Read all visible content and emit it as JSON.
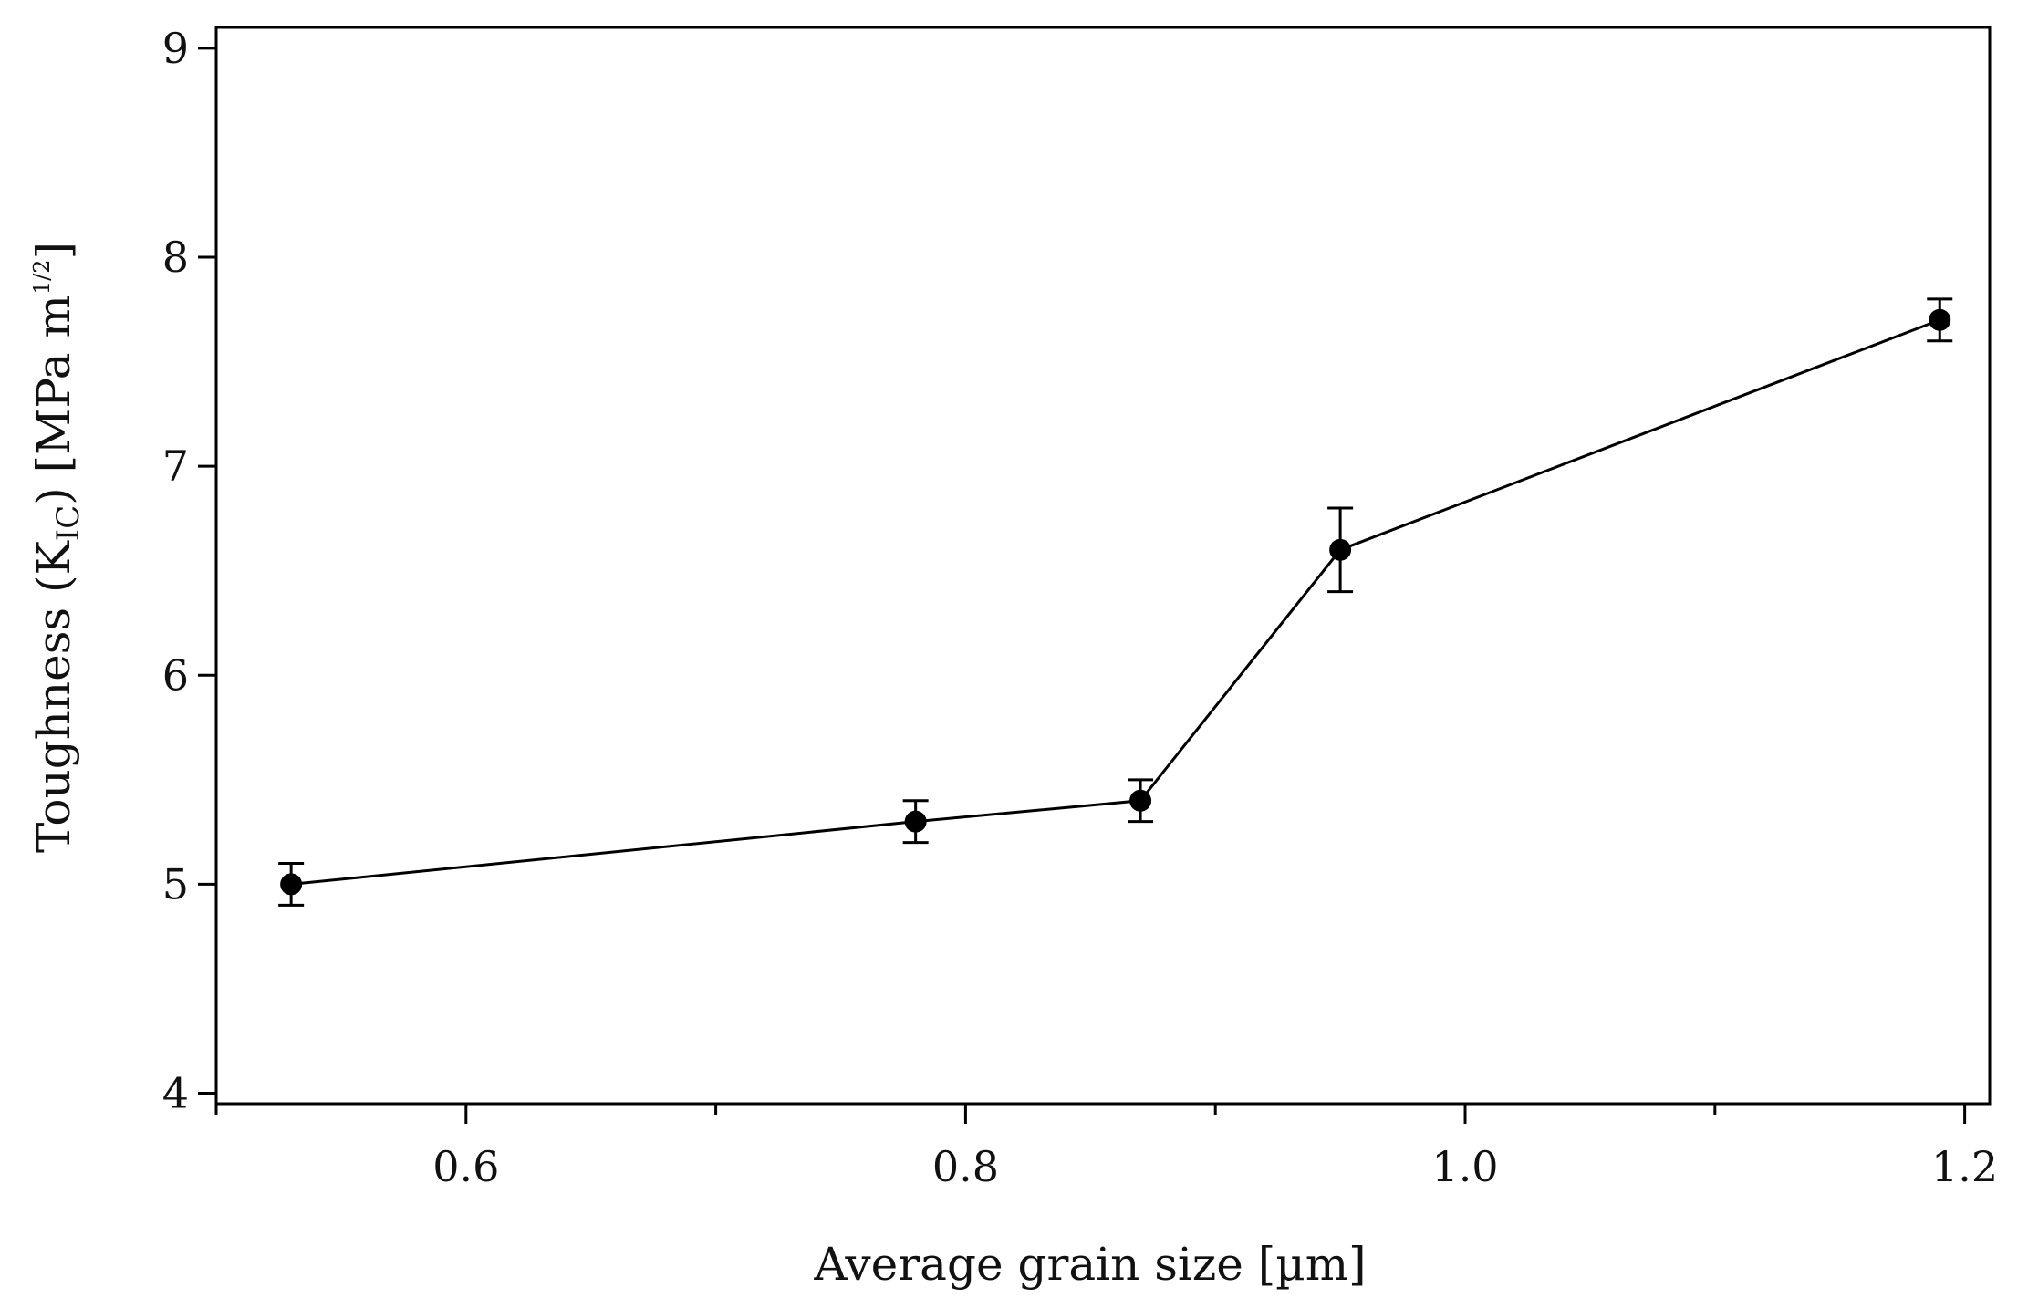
{
  "chart_data": {
    "type": "line",
    "title": "",
    "xlabel": "Average grain size  [µm]",
    "ylabel": {
      "main": "Toughness (K",
      "sub": "IC",
      "mid": ")  [MPa  m",
      "sup": "1/2",
      "end": "]"
    },
    "xlim": [
      0.5,
      1.21
    ],
    "ylim": [
      3.95,
      9.1
    ],
    "x_ticks_major": [
      0.6,
      0.8,
      1.0,
      1.2
    ],
    "x_tick_labels": [
      "0.6",
      "0.8",
      "1.0",
      "1.2"
    ],
    "x_ticks_minor": [
      0.5,
      0.7,
      0.9,
      1.1
    ],
    "y_ticks": [
      4,
      5,
      6,
      7,
      8,
      9
    ],
    "y_tick_labels": [
      "4",
      "5",
      "6",
      "7",
      "8",
      "9"
    ],
    "grid": false,
    "series": [
      {
        "name": "Toughness",
        "x": [
          0.53,
          0.78,
          0.87,
          0.95,
          1.19
        ],
        "y": [
          5.0,
          5.3,
          5.4,
          6.6,
          7.7
        ],
        "error": [
          0.1,
          0.1,
          0.1,
          0.2,
          0.1
        ],
        "marker": "circle",
        "color": "#000000"
      }
    ]
  }
}
